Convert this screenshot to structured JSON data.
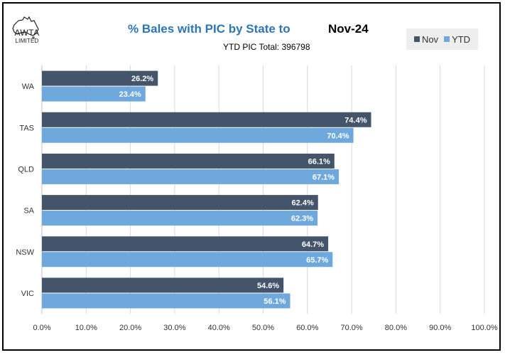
{
  "logo": {
    "name": "AWTA",
    "sub": "LIMITED"
  },
  "chart_data": {
    "type": "bar",
    "orientation": "horizontal",
    "title": "% Bales with PIC by State to",
    "period": "Nov-24",
    "subtitle": "YTD PIC Total:  396798",
    "categories": [
      "WA",
      "TAS",
      "QLD",
      "SA",
      "NSW",
      "VIC"
    ],
    "series": [
      {
        "name": "Nov",
        "color": "#44546a",
        "values": [
          26.2,
          74.4,
          66.1,
          62.4,
          64.7,
          54.6
        ]
      },
      {
        "name": "YTD",
        "color": "#6fa8dc",
        "values": [
          23.4,
          70.4,
          67.1,
          62.3,
          65.7,
          56.1
        ]
      }
    ],
    "xlim": [
      0,
      100
    ],
    "xticks": [
      0,
      10,
      20,
      30,
      40,
      50,
      60,
      70,
      80,
      90,
      100
    ],
    "tick_suffix": "%",
    "grid": true,
    "legend": "top-right"
  }
}
